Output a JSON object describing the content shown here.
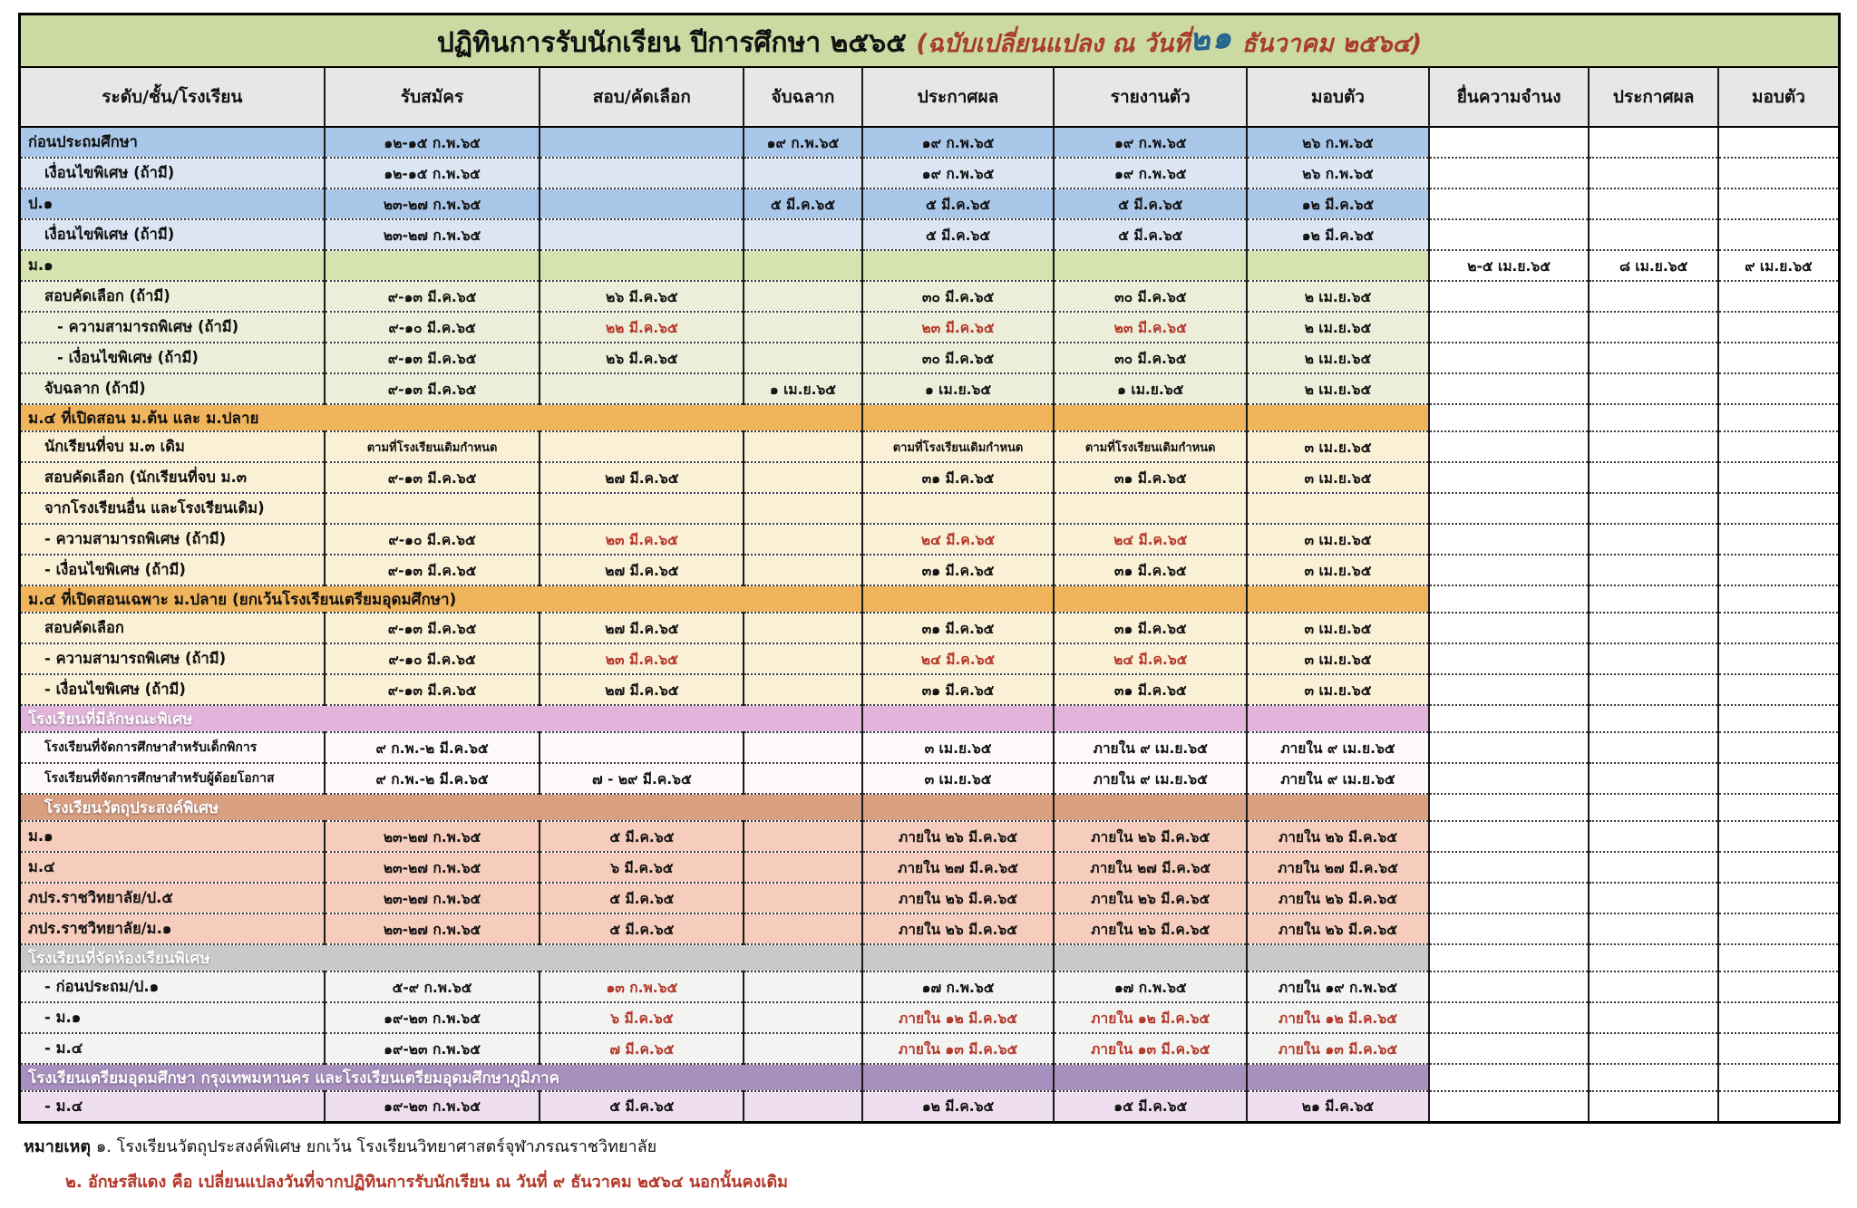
{
  "title": {
    "main": "ปฏิทินการรับนักเรียน  ปีการศึกษา ๒๕๖๕ ",
    "change_prefix": "(ฉบับเปลี่ยนแปลง ณ วันที่",
    "handwritten_date": "๒๑",
    "change_suffix": " ธันวาคม ๒๕๖๔)"
  },
  "columns": [
    "ระดับ/ชั้น/โรงเรียน",
    "รับสมัคร",
    "สอบ/คัดเลือก",
    "จับฉลาก",
    "ประกาศผล",
    "รายงานตัว",
    "มอบตัว",
    "ยื่นความจำนง",
    "ประกาศผล",
    "มอบตัว"
  ],
  "colors": {
    "title_bar_green": "#cbd9a2",
    "changed_date_red": "#b4382a",
    "handwritten_blue": "#23638e",
    "title_note_red": "#a83c28"
  },
  "rows": [
    {
      "label": "ก่อนประถมศึกษา",
      "indent": 0,
      "bg": "blue1",
      "cells": [
        "๑๒-๑๕ ก.พ.๖๕",
        "",
        "๑๙ ก.พ.๖๕",
        "๑๙ ก.พ.๖๕",
        "๑๙ ก.พ.๖๕",
        "๒๖ ก.พ.๖๕",
        "",
        "",
        ""
      ]
    },
    {
      "label": "เงื่อนไขพิเศษ (ถ้ามี)",
      "indent": 1,
      "bg": "blue2",
      "cells": [
        "๑๒-๑๕ ก.พ.๖๕",
        "",
        "",
        "๑๙ ก.พ.๖๕",
        "๑๙ ก.พ.๖๕",
        "๒๖ ก.พ.๖๕",
        "",
        "",
        ""
      ]
    },
    {
      "label": "ป.๑",
      "indent": 0,
      "bg": "blue1",
      "cells": [
        "๒๓-๒๗ ก.พ.๖๕",
        "",
        "๕ มี.ค.๖๕",
        "๕ มี.ค.๖๕",
        "๕ มี.ค.๖๕",
        "๑๒ มี.ค.๖๕",
        "",
        "",
        ""
      ]
    },
    {
      "label": "เงื่อนไขพิเศษ (ถ้ามี)",
      "indent": 1,
      "bg": "blue2",
      "cells": [
        "๒๓-๒๗ ก.พ.๖๕",
        "",
        "",
        "๕ มี.ค.๖๕",
        "๕ มี.ค.๖๕",
        "๑๒ มี.ค.๖๕",
        "",
        "",
        ""
      ]
    },
    {
      "label": "ม.๑",
      "indent": 0,
      "bg": "green1",
      "cells": [
        "",
        "",
        "",
        "",
        "",
        "",
        "๒-๕ เม.ย.๖๕",
        "๘ เม.ย.๖๕",
        "๙ เม.ย.๖๕"
      ]
    },
    {
      "label": "สอบคัดเลือก (ถ้ามี)",
      "indent": 1,
      "bg": "green2",
      "cells": [
        "๙-๑๓ มี.ค.๖๕",
        "๒๖ มี.ค.๖๕",
        "",
        "๓๐ มี.ค.๖๕",
        "๓๐ มี.ค.๖๕",
        "๒ เม.ย.๖๕",
        "",
        "",
        ""
      ]
    },
    {
      "label": "- ความสามารถพิเศษ (ถ้ามี)",
      "indent": 2,
      "bg": "green2",
      "red": [
        1,
        3,
        4
      ],
      "cells": [
        "๙-๑๐ มี.ค.๖๕",
        "๒๒ มี.ค.๖๕",
        "",
        "๒๓ มี.ค.๖๕",
        "๒๓ มี.ค.๖๕",
        "๒ เม.ย.๖๕",
        "",
        "",
        ""
      ]
    },
    {
      "label": "- เงื่อนไขพิเศษ (ถ้ามี)",
      "indent": 2,
      "bg": "green2",
      "cells": [
        "๙-๑๓ มี.ค.๖๕",
        "๒๖ มี.ค.๖๕",
        "",
        "๓๐ มี.ค.๖๕",
        "๓๐ มี.ค.๖๕",
        "๒ เม.ย.๖๕",
        "",
        "",
        ""
      ]
    },
    {
      "label": "จับฉลาก (ถ้ามี)",
      "indent": 1,
      "bg": "green2",
      "cells": [
        "๙-๑๓ มี.ค.๖๕",
        "",
        "๑ เม.ย.๖๕",
        "๑ เม.ย.๖๕",
        "๑ เม.ย.๖๕",
        "๒ เม.ย.๖๕",
        "",
        "",
        ""
      ]
    },
    {
      "section": true,
      "label": "ม.๔ ที่เปิดสอน ม.ต้น และ ม.ปลาย",
      "indent": 0,
      "bg": "orange1"
    },
    {
      "label": "นักเรียนที่จบ ม.๓ เดิม",
      "indent": 1,
      "bg": "cream",
      "cells": [
        "ตามที่โรงเรียนเดิมกำหนด",
        "",
        "",
        "ตามที่โรงเรียนเดิมกำหนด",
        "ตามที่โรงเรียนเดิมกำหนด",
        "๓ เม.ย.๖๕",
        "",
        "",
        ""
      ]
    },
    {
      "label": "สอบคัดเลือก (นักเรียนที่จบ ม.๓",
      "indent": 1,
      "bg": "cream",
      "cells": [
        "๙-๑๓ มี.ค.๖๕",
        "๒๗ มี.ค.๖๕",
        "",
        "๓๑ มี.ค.๖๕",
        "๓๑ มี.ค.๖๕",
        "๓ เม.ย.๖๕",
        "",
        "",
        ""
      ]
    },
    {
      "label": "จากโรงเรียนอื่น และโรงเรียนเดิม)",
      "indent": 1,
      "bg": "cream",
      "cells": [
        "",
        "",
        "",
        "",
        "",
        "",
        "",
        "",
        ""
      ]
    },
    {
      "label": "- ความสามารถพิเศษ  (ถ้ามี)",
      "indent": 1,
      "bg": "cream",
      "red": [
        1,
        3,
        4
      ],
      "cells": [
        "๙-๑๐ มี.ค.๖๕",
        "๒๓ มี.ค.๖๕",
        "",
        "๒๔ มี.ค.๖๕",
        "๒๔ มี.ค.๖๕",
        "๓ เม.ย.๖๕",
        "",
        "",
        ""
      ]
    },
    {
      "label": "- เงื่อนไขพิเศษ (ถ้ามี)",
      "indent": 1,
      "bg": "cream",
      "cells": [
        "๙-๑๓ มี.ค.๖๕",
        "๒๗ มี.ค.๖๕",
        "",
        "๓๑ มี.ค.๖๕",
        "๓๑ มี.ค.๖๕",
        "๓ เม.ย.๖๕",
        "",
        "",
        ""
      ]
    },
    {
      "section": true,
      "label": "ม.๔ ที่เปิดสอนเฉพาะ ม.ปลาย (ยกเว้นโรงเรียนเตรียมอุดมศึกษา)",
      "indent": 0,
      "bg": "orange1"
    },
    {
      "label": "สอบคัดเลือก",
      "indent": 1,
      "bg": "cream",
      "cells": [
        "๙-๑๓ มี.ค.๖๕",
        "๒๗ มี.ค.๖๕",
        "",
        "๓๑ มี.ค.๖๕",
        "๓๑ มี.ค.๖๕",
        "๓ เม.ย.๖๕",
        "",
        "",
        ""
      ]
    },
    {
      "label": "- ความสามารถพิเศษ  (ถ้ามี)",
      "indent": 1,
      "bg": "cream",
      "red": [
        1,
        3,
        4
      ],
      "cells": [
        "๙-๑๐ มี.ค.๖๕",
        "๒๓ มี.ค.๖๕",
        "",
        "๒๔ มี.ค.๖๕",
        "๒๔ มี.ค.๖๕",
        "๓ เม.ย.๖๕",
        "",
        "",
        ""
      ]
    },
    {
      "label": "- เงื่อนไขพิเศษ (ถ้ามี)",
      "indent": 1,
      "bg": "cream",
      "cells": [
        "๙-๑๓ มี.ค.๖๕",
        "๒๗ มี.ค.๖๕",
        "",
        "๓๑ มี.ค.๖๕",
        "๓๑ มี.ค.๖๕",
        "๓ เม.ย.๖๕",
        "",
        "",
        ""
      ]
    },
    {
      "section": true,
      "label": "โรงเรียนที่มีลักษณะพิเศษ",
      "indent": 0,
      "bg": "pink1",
      "wtext": true
    },
    {
      "label": "โรงเรียนที่จัดการศึกษาสำหรับเด็กพิการ",
      "indent": 1,
      "bg": "whitepink",
      "cells": [
        "๙ ก.พ.-๒ มี.ค.๖๕",
        "",
        "",
        "๓ เม.ย.๖๕",
        "ภายใน ๙ เม.ย.๖๕",
        "ภายใน ๙ เม.ย.๖๕",
        "",
        "",
        ""
      ]
    },
    {
      "label": "โรงเรียนที่จัดการศึกษาสำหรับผู้ด้อยโอกาส",
      "indent": 1,
      "bg": "whitepink",
      "cells": [
        "๙ ก.พ.-๒ มี.ค.๖๕",
        "๗ - ๒๙ มี.ค.๖๕",
        "",
        "๓ เม.ย.๖๕",
        "ภายใน ๙ เม.ย.๖๕",
        "ภายใน ๙ เม.ย.๖๕",
        "",
        "",
        ""
      ]
    },
    {
      "section": true,
      "label": "โรงเรียนวัตถุประสงค์พิเศษ",
      "indent": 1,
      "bg": "salmon1",
      "wtext": true
    },
    {
      "label": "ม.๑",
      "indent": 0,
      "bg": "salmon2",
      "cells": [
        "๒๓-๒๗ ก.พ.๖๕",
        "๕ มี.ค.๖๕",
        "",
        "ภายใน ๒๖ มี.ค.๖๕",
        "ภายใน ๒๖ มี.ค.๖๕",
        "ภายใน ๒๖ มี.ค.๖๕",
        "",
        "",
        ""
      ]
    },
    {
      "label": "ม.๔",
      "indent": 0,
      "bg": "salmon2",
      "cells": [
        "๒๓-๒๗ ก.พ.๖๕",
        "๖ มี.ค.๖๕",
        "",
        "ภายใน ๒๗ มี.ค.๖๕",
        "ภายใน ๒๗ มี.ค.๖๕",
        "ภายใน ๒๗ มี.ค.๖๕",
        "",
        "",
        ""
      ]
    },
    {
      "label": "ภปร.ราชวิทยาลัย/ป.๕",
      "indent": 0,
      "bg": "salmon2",
      "cells": [
        "๒๓-๒๗ ก.พ.๖๕",
        "๕ มี.ค.๖๕",
        "",
        "ภายใน ๒๖ มี.ค.๖๕",
        "ภายใน ๒๖ มี.ค.๖๕",
        "ภายใน ๒๖ มี.ค.๖๕",
        "",
        "",
        ""
      ]
    },
    {
      "label": "ภปร.ราชวิทยาลัย/ม.๑",
      "indent": 0,
      "bg": "salmon2",
      "cells": [
        "๒๓-๒๗ ก.พ.๖๕",
        "๕ มี.ค.๖๕",
        "",
        "ภายใน ๒๖ มี.ค.๖๕",
        "ภายใน ๒๖ มี.ค.๖๕",
        "ภายใน ๒๖ มี.ค.๖๕",
        "",
        "",
        ""
      ]
    },
    {
      "section": true,
      "label": "โรงเรียนที่จัดห้องเรียนพิเศษ",
      "indent": 0,
      "bg": "gray1",
      "wtext": true
    },
    {
      "label": "- ก่อนประถม/ป.๑",
      "indent": 1,
      "bg": "gray2",
      "red": [
        1
      ],
      "cells": [
        "๕-๙ ก.พ.๖๕",
        "๑๓ ก.พ.๖๕",
        "",
        "๑๗ ก.พ.๖๕",
        "๑๗ ก.พ.๖๕",
        "ภายใน ๑๙ ก.พ.๖๕",
        "",
        "",
        ""
      ]
    },
    {
      "label": "- ม.๑",
      "indent": 1,
      "bg": "gray2",
      "red": [
        1,
        3,
        4,
        5
      ],
      "cells": [
        "๑๙-๒๓ ก.พ.๖๕",
        "๖ มี.ค.๖๕",
        "",
        "ภายใน ๑๒ มี.ค.๖๕",
        "ภายใน ๑๒ มี.ค.๖๕",
        "ภายใน ๑๒ มี.ค.๖๕",
        "",
        "",
        ""
      ]
    },
    {
      "label": "- ม.๔",
      "indent": 1,
      "bg": "gray2",
      "red": [
        1,
        3,
        4,
        5
      ],
      "cells": [
        "๑๙-๒๓ ก.พ.๖๕",
        "๗ มี.ค.๖๕",
        "",
        "ภายใน ๑๓ มี.ค.๖๕",
        "ภายใน ๑๓ มี.ค.๖๕",
        "ภายใน ๑๓ มี.ค.๖๕",
        "",
        "",
        ""
      ]
    },
    {
      "section": true,
      "label": "โรงเรียนเตรียมอุดมศึกษา กรุงเทพมหานคร และโรงเรียนเตรียมอุดมศึกษาภูมิภาค",
      "indent": 0,
      "bg": "purple1",
      "wtext": true
    },
    {
      "label": "- ม.๔",
      "indent": 1,
      "bg": "purple2",
      "cells": [
        "๑๙-๒๓ ก.พ.๖๕",
        "๕ มี.ค.๖๕",
        "",
        "๑๒ มี.ค.๖๕",
        "๑๕ มี.ค.๖๕",
        "๒๑ มี.ค.๖๕",
        "",
        "",
        ""
      ]
    }
  ],
  "notes": {
    "heading": "หมายเหตุ",
    "note1": "๑. โรงเรียนวัตถุประสงค์พิเศษ ยกเว้น โรงเรียนวิทยาศาสตร์จุฬาภรณราชวิทยาลัย",
    "note2": "๒. อักษรสีแดง คือ เปลี่ยนแปลงวันที่จากปฏิทินการรับนักเรียน ณ วันที่ ๙ ธันวาคม ๒๕๖๔ นอกนั้นคงเดิม"
  }
}
